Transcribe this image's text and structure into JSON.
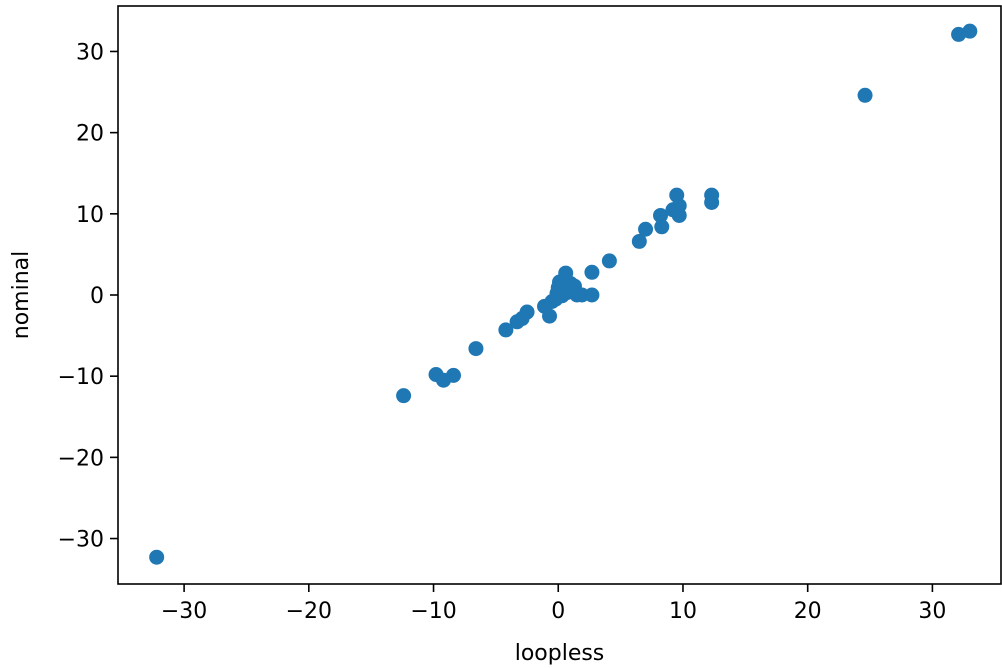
{
  "chart_data": {
    "type": "scatter",
    "title": "",
    "xlabel": "loopless",
    "ylabel": "nominal",
    "xlim": [
      -35.3,
      35.5
    ],
    "ylim": [
      -35.6,
      35.6
    ],
    "xticks": [
      -30,
      -20,
      -10,
      0,
      10,
      20,
      30
    ],
    "yticks": [
      -30,
      -20,
      -10,
      0,
      10,
      20,
      30
    ],
    "xtick_labels": [
      "−30",
      "−20",
      "−10",
      "0",
      "10",
      "20",
      "30"
    ],
    "ytick_labels": [
      "−30",
      "−20",
      "−10",
      "0",
      "10",
      "20",
      "30"
    ],
    "grid": false,
    "legend": "none",
    "marker_color": "#1f77b4",
    "points": [
      {
        "x": -32.2,
        "y": -32.3
      },
      {
        "x": -12.4,
        "y": -12.4
      },
      {
        "x": -9.8,
        "y": -9.8
      },
      {
        "x": -9.2,
        "y": -10.5
      },
      {
        "x": -8.4,
        "y": -9.9
      },
      {
        "x": -6.6,
        "y": -6.6
      },
      {
        "x": -4.2,
        "y": -4.3
      },
      {
        "x": -3.3,
        "y": -3.3
      },
      {
        "x": -2.9,
        "y": -2.9
      },
      {
        "x": -2.5,
        "y": -2.1
      },
      {
        "x": -1.1,
        "y": -1.4
      },
      {
        "x": -0.7,
        "y": -2.6
      },
      {
        "x": -0.5,
        "y": -0.8
      },
      {
        "x": -0.2,
        "y": -0.5
      },
      {
        "x": -0.1,
        "y": 0.2
      },
      {
        "x": 0.0,
        "y": 0.9
      },
      {
        "x": 0.1,
        "y": 1.6
      },
      {
        "x": 0.2,
        "y": 0.5
      },
      {
        "x": 0.3,
        "y": -0.1
      },
      {
        "x": 0.4,
        "y": 1.2
      },
      {
        "x": 0.5,
        "y": 2.0
      },
      {
        "x": 0.6,
        "y": 2.7
      },
      {
        "x": 0.7,
        "y": 0.3
      },
      {
        "x": 0.8,
        "y": 0.9
      },
      {
        "x": 1.0,
        "y": 1.4
      },
      {
        "x": 1.2,
        "y": 0.5
      },
      {
        "x": 1.3,
        "y": 1.1
      },
      {
        "x": 1.5,
        "y": 0.0
      },
      {
        "x": 1.9,
        "y": 0.0
      },
      {
        "x": 2.7,
        "y": 0.0
      },
      {
        "x": 2.7,
        "y": 2.8
      },
      {
        "x": 4.1,
        "y": 4.2
      },
      {
        "x": 6.5,
        "y": 6.6
      },
      {
        "x": 7.0,
        "y": 8.1
      },
      {
        "x": 8.2,
        "y": 9.8
      },
      {
        "x": 8.3,
        "y": 8.4
      },
      {
        "x": 9.2,
        "y": 10.5
      },
      {
        "x": 9.5,
        "y": 12.3
      },
      {
        "x": 9.7,
        "y": 11.0
      },
      {
        "x": 9.7,
        "y": 9.8
      },
      {
        "x": 12.3,
        "y": 12.3
      },
      {
        "x": 12.3,
        "y": 11.4
      },
      {
        "x": 24.6,
        "y": 24.6
      },
      {
        "x": 32.1,
        "y": 32.1
      },
      {
        "x": 33.0,
        "y": 32.5
      }
    ]
  }
}
